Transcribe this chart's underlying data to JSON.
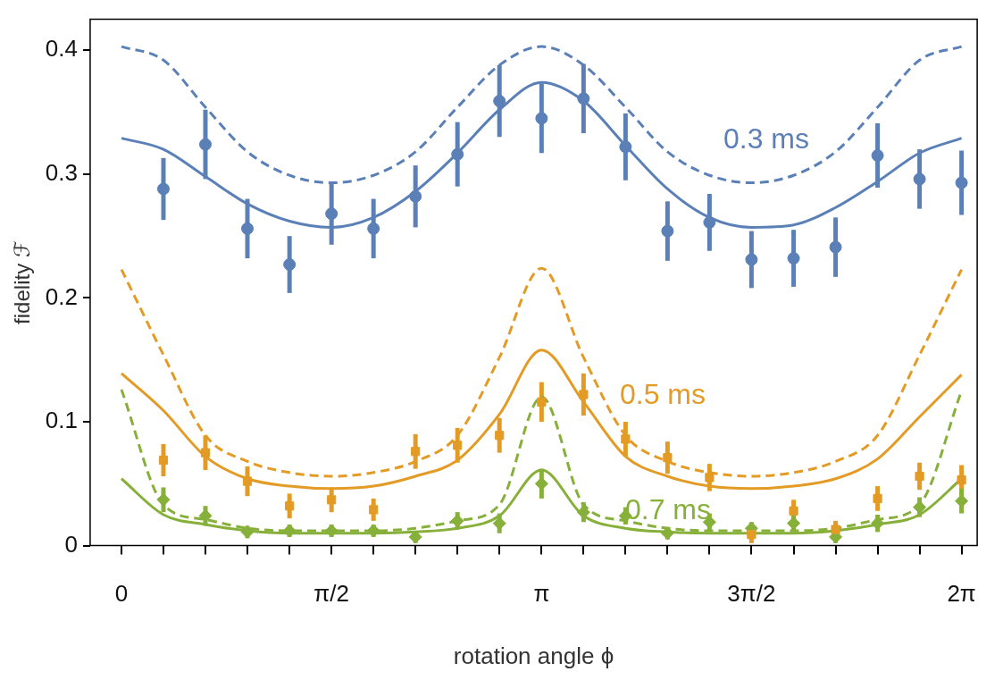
{
  "chart_data": {
    "type": "scatter",
    "xlabel": "rotation angle ϕ",
    "ylabel": "fidelity ℱ",
    "x": [
      0,
      0.314,
      0.628,
      0.942,
      1.257,
      1.571,
      1.885,
      2.199,
      2.513,
      2.827,
      3.142,
      3.456,
      3.77,
      4.084,
      4.398,
      4.712,
      5.027,
      5.341,
      5.655,
      5.969,
      6.283
    ],
    "xlim": [
      -0.234,
      6.4
    ],
    "ylim": [
      0,
      0.425
    ],
    "xticks": [
      0,
      {
        "value": 0.314,
        "label": null
      },
      {
        "value": 0.628,
        "label": null
      },
      {
        "value": 0.942,
        "label": null
      },
      {
        "value": 1.257,
        "label": null
      },
      {
        "value": 1.571,
        "label": "π/2"
      },
      {
        "value": 1.885,
        "label": null
      },
      {
        "value": 2.199,
        "label": null
      },
      {
        "value": 2.513,
        "label": null
      },
      {
        "value": 2.827,
        "label": null
      },
      {
        "value": 3.142,
        "label": "π"
      },
      {
        "value": 3.456,
        "label": null
      },
      {
        "value": 3.77,
        "label": null
      },
      {
        "value": 4.084,
        "label": null
      },
      {
        "value": 4.398,
        "label": null
      },
      {
        "value": 4.712,
        "label": "3π/2"
      },
      {
        "value": 5.027,
        "label": null
      },
      {
        "value": 5.341,
        "label": null
      },
      {
        "value": 5.655,
        "label": null
      },
      {
        "value": 5.969,
        "label": null
      },
      {
        "value": 6.283,
        "label": "2π"
      }
    ],
    "yticks": [
      0,
      0.1,
      0.2,
      0.3,
      0.4
    ],
    "grid": false,
    "legend": false,
    "series": [
      {
        "type": "line",
        "line_style": "dashed",
        "color": "#5b80b8",
        "values": [
          0.403,
          0.392,
          0.354,
          0.318,
          0.299,
          0.293,
          0.299,
          0.318,
          0.354,
          0.388,
          0.403,
          0.388,
          0.354,
          0.318,
          0.299,
          0.293,
          0.299,
          0.318,
          0.354,
          0.392,
          0.403
        ]
      },
      {
        "type": "line",
        "line_style": "solid",
        "color": "#5b80b8",
        "values": [
          0.329,
          0.32,
          0.298,
          0.276,
          0.262,
          0.257,
          0.265,
          0.286,
          0.317,
          0.352,
          0.374,
          0.359,
          0.323,
          0.288,
          0.265,
          0.257,
          0.259,
          0.273,
          0.294,
          0.317,
          0.329
        ]
      },
      {
        "type": "scatter",
        "name": "0.3 ms",
        "marker": "circle",
        "color": "#5b80b8",
        "values": [
          null,
          0.288,
          0.324,
          0.256,
          0.227,
          0.268,
          0.256,
          0.282,
          0.316,
          0.359,
          0.345,
          0.361,
          0.322,
          0.254,
          0.261,
          0.231,
          0.232,
          0.241,
          0.315,
          0.296,
          0.293
        ],
        "errors": [
          null,
          0.025,
          0.028,
          0.024,
          0.023,
          0.025,
          0.024,
          0.025,
          0.026,
          0.029,
          0.028,
          0.028,
          0.027,
          0.024,
          0.023,
          0.023,
          0.023,
          0.024,
          0.026,
          0.024,
          0.026
        ]
      },
      {
        "type": "line",
        "line_style": "dashed",
        "color": "#e39b25",
        "values": [
          0.223,
          0.154,
          0.089,
          0.068,
          0.059,
          0.056,
          0.059,
          0.068,
          0.089,
          0.152,
          0.224,
          0.152,
          0.089,
          0.068,
          0.059,
          0.056,
          0.059,
          0.068,
          0.089,
          0.154,
          0.223
        ]
      },
      {
        "type": "line",
        "line_style": "solid",
        "color": "#e39b25",
        "values": [
          0.139,
          0.109,
          0.072,
          0.054,
          0.048,
          0.046,
          0.048,
          0.056,
          0.069,
          0.106,
          0.158,
          0.116,
          0.072,
          0.056,
          0.048,
          0.046,
          0.048,
          0.054,
          0.07,
          0.104,
          0.138
        ]
      },
      {
        "type": "scatter",
        "name": "0.5 ms",
        "marker": "square",
        "color": "#e39b25",
        "values": [
          null,
          0.069,
          0.075,
          0.052,
          0.032,
          0.037,
          0.029,
          0.076,
          0.081,
          0.089,
          0.116,
          0.122,
          0.086,
          0.071,
          0.055,
          0.009,
          0.028,
          0.013,
          0.038,
          0.056,
          0.053
        ],
        "errors": [
          null,
          0.013,
          0.014,
          0.012,
          0.01,
          0.01,
          0.009,
          0.014,
          0.014,
          0.014,
          0.016,
          0.017,
          0.014,
          0.013,
          0.011,
          0.007,
          0.009,
          0.007,
          0.01,
          0.011,
          0.012
        ]
      },
      {
        "type": "line",
        "line_style": "dashed",
        "color": "#86b03a",
        "values": [
          0.126,
          0.033,
          0.021,
          0.014,
          0.012,
          0.012,
          0.012,
          0.014,
          0.02,
          0.033,
          0.12,
          0.033,
          0.02,
          0.014,
          0.012,
          0.012,
          0.012,
          0.014,
          0.021,
          0.033,
          0.125
        ]
      },
      {
        "type": "line",
        "line_style": "solid",
        "color": "#86b03a",
        "values": [
          0.054,
          0.025,
          0.017,
          0.012,
          0.01,
          0.01,
          0.01,
          0.011,
          0.014,
          0.024,
          0.061,
          0.024,
          0.014,
          0.011,
          0.01,
          0.01,
          0.01,
          0.012,
          0.017,
          0.025,
          0.054
        ]
      },
      {
        "type": "scatter",
        "name": "0.7 ms",
        "marker": "diamond",
        "color": "#86b03a",
        "values": [
          null,
          0.037,
          0.024,
          0.011,
          0.012,
          0.012,
          0.012,
          0.007,
          0.02,
          0.018,
          0.05,
          0.027,
          0.024,
          0.01,
          0.019,
          0.014,
          0.018,
          0.007,
          0.018,
          0.031,
          0.036
        ],
        "errors": [
          null,
          0.01,
          0.008,
          0.005,
          0.005,
          0.005,
          0.005,
          0.005,
          0.007,
          0.008,
          0.012,
          0.008,
          0.007,
          0.005,
          0.007,
          0.005,
          0.007,
          0.005,
          0.007,
          0.008,
          0.01
        ]
      }
    ]
  }
}
